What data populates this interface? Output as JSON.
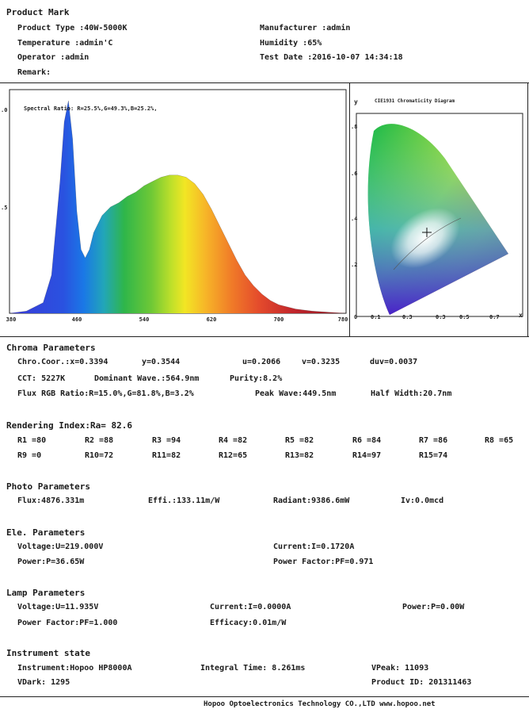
{
  "product_mark": {
    "title": "Product Mark",
    "product_type": "Product Type :40W-5000K",
    "temperature": "Temperature :admin'C",
    "operator": "Operator :admin",
    "remark": "Remark:",
    "manufacturer": "Manufacturer :admin",
    "humidity": "Humidity :65%",
    "test_date": "Test Date :2016-10-07 14:34:18"
  },
  "spectrum": {
    "title": "Spectral Ratio:  R=25.5%,G=49.3%,B=25.2%,",
    "y_ticks": [
      ".0",
      ".5"
    ],
    "x_ticks": [
      "380",
      "460",
      "540",
      "620",
      "700",
      "780"
    ],
    "chart_data": {
      "type": "area",
      "title": "Spectral Ratio:  R=25.5%,G=49.3%,B=25.2%,",
      "xlabel": "",
      "ylabel": "",
      "xlim": [
        380,
        780
      ],
      "ylim": [
        0,
        1.0
      ],
      "x": [
        380,
        400,
        420,
        430,
        440,
        445,
        450,
        455,
        460,
        465,
        470,
        475,
        480,
        490,
        500,
        510,
        520,
        530,
        540,
        550,
        560,
        570,
        580,
        590,
        600,
        610,
        620,
        630,
        640,
        650,
        660,
        670,
        680,
        690,
        700,
        720,
        740,
        760,
        780
      ],
      "y": [
        0.0,
        0.01,
        0.05,
        0.18,
        0.62,
        0.9,
        1.0,
        0.82,
        0.48,
        0.3,
        0.26,
        0.3,
        0.38,
        0.46,
        0.5,
        0.52,
        0.55,
        0.57,
        0.6,
        0.62,
        0.64,
        0.65,
        0.65,
        0.64,
        0.61,
        0.56,
        0.49,
        0.41,
        0.33,
        0.25,
        0.18,
        0.13,
        0.09,
        0.06,
        0.04,
        0.02,
        0.01,
        0.005,
        0.0
      ]
    }
  },
  "cie": {
    "title": "CIE1931 Chromaticity Diagram",
    "y_label": "y",
    "x_label": "x",
    "y_ticks": [
      ".8",
      ".6",
      ".4",
      ".2"
    ],
    "x_ticks": [
      "0",
      "0.1",
      "0.3",
      "0.3",
      "0.5",
      "0.7"
    ]
  },
  "chroma": {
    "title": "Chroma Parameters",
    "line1": [
      "Chro.Coor.:x=0.3394",
      "y=0.3544",
      "u=0.2066",
      "v=0.3235",
      "duv=0.0037"
    ],
    "line2": [
      "CCT: 5227K",
      "Dominant Wave.:564.9nm",
      "Purity:8.2%"
    ],
    "line3": [
      "Flux RGB Ratio:R=15.0%,G=81.8%,B=3.2%",
      "Peak Wave:449.5nm",
      "Half Width:20.7nm"
    ]
  },
  "rendering": {
    "title": "Rendering Index:Ra= 82.6",
    "row1": [
      "R1 =80",
      "R2 =88",
      "R3 =94",
      "R4 =82",
      "R5 =82",
      "R6 =84",
      "R7 =86",
      "R8 =65"
    ],
    "row2": [
      "R9 =0",
      "R10=72",
      "R11=82",
      "R12=65",
      "R13=82",
      "R14=97",
      "R15=74"
    ]
  },
  "photo": {
    "title": "Photo Parameters",
    "values": [
      "Flux:4876.331m",
      "Effi.:133.11m/W",
      "Radiant:9386.6mW",
      "Iv:0.0mcd"
    ]
  },
  "ele": {
    "title": "Ele. Parameters",
    "voltage": "Voltage:U=219.000V",
    "current": "Current:I=0.1720A",
    "power": "Power:P=36.65W",
    "power_factor": "Power Factor:PF=0.971"
  },
  "lamp": {
    "title": "Lamp Parameters",
    "voltage": "Voltage:U=11.935V",
    "current": "Current:I=0.0000A",
    "power": "Power:P=0.00W",
    "power_factor": "Power Factor:PF=1.000",
    "efficacy": "Efficacy:0.01m/W"
  },
  "instrument": {
    "title": "Instrument state",
    "instrument": "Instrument:Hopoo HP8000A",
    "integral_time": "Integral Time: 8.261ms",
    "vpeak": "VPeak: 11093",
    "vdark": "VDark: 1295",
    "product_id": "Product ID: 201311463"
  },
  "footer": {
    "text": "Hopoo Optoelectronics Technology CO.,LTD  www.hopoo.net"
  }
}
